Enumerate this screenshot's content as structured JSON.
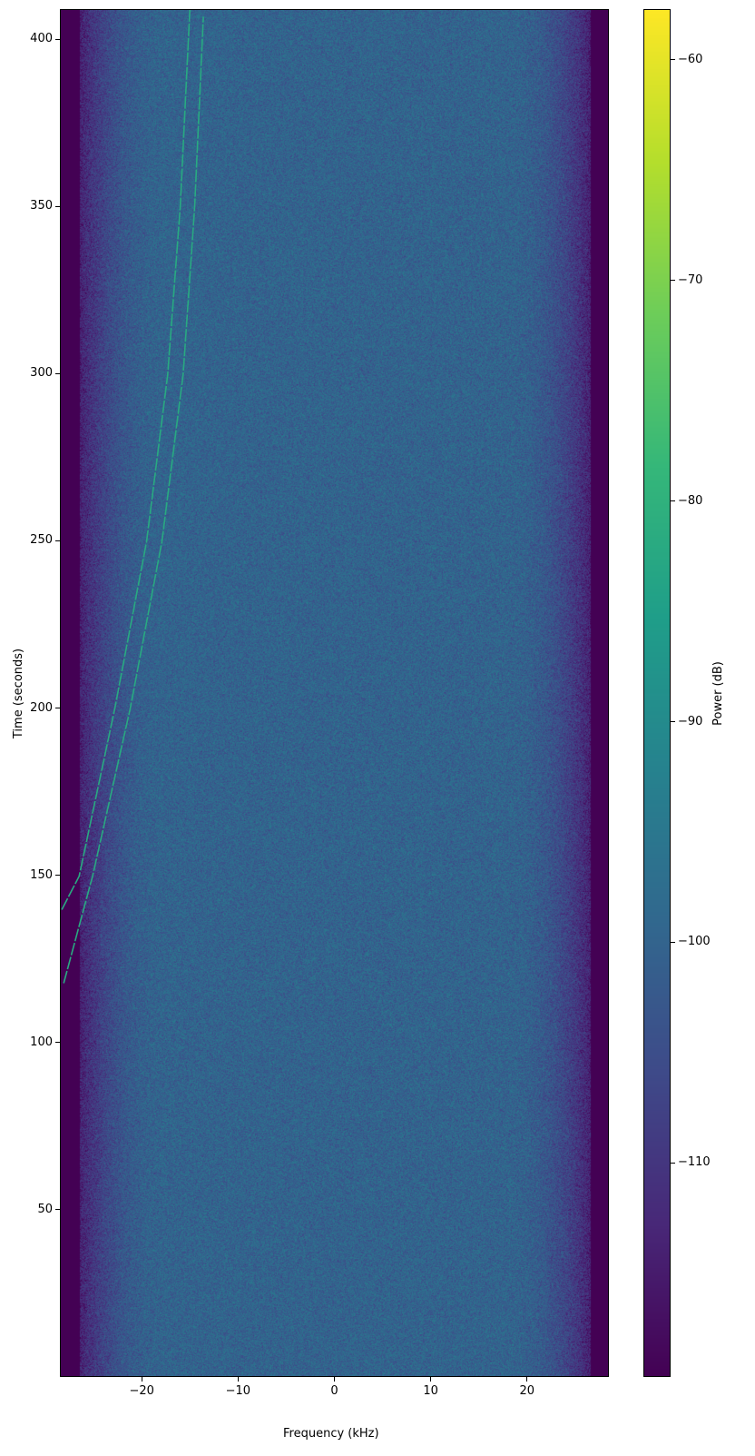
{
  "chart_data": {
    "type": "heatmap",
    "xlabel": "Frequency (kHz)",
    "ylabel": "Time (seconds)",
    "xlim": [
      -28.5,
      28.5
    ],
    "ylim": [
      0,
      409
    ],
    "xticks": [
      -20,
      -10,
      0,
      10,
      20
    ],
    "xtick_labels": [
      "−20",
      "−10",
      "0",
      "10",
      "20"
    ],
    "yticks": [
      50,
      100,
      150,
      200,
      250,
      300,
      350,
      400
    ],
    "ytick_labels": [
      "50",
      "100",
      "150",
      "200",
      "250",
      "300",
      "350",
      "400"
    ],
    "colormap": "viridis",
    "colorbar": {
      "label": "Power (dB)",
      "clim": [
        -119.7,
        -57.7
      ],
      "ticks": [
        -60,
        -70,
        -80,
        -90,
        -100,
        -110
      ],
      "tick_labels": [
        "−60",
        "−70",
        "−80",
        "−90",
        "−100",
        "−110"
      ]
    },
    "noise_floor_db": -100,
    "band_edge_khz": 26.5,
    "signals": [
      {
        "power_db": -82,
        "points": [
          [
            -28.4,
            140
          ],
          [
            -26.6,
            150
          ],
          [
            -22.9,
            200
          ],
          [
            -19.6,
            250
          ],
          [
            -17.4,
            300
          ],
          [
            -16.1,
            350
          ],
          [
            -15.1,
            409
          ]
        ]
      },
      {
        "power_db": -82,
        "points": [
          [
            -28.2,
            118
          ],
          [
            -25.2,
            150
          ],
          [
            -21.3,
            200
          ],
          [
            -18.0,
            250
          ],
          [
            -15.8,
            300
          ],
          [
            -14.6,
            350
          ],
          [
            -13.7,
            407
          ]
        ]
      }
    ]
  }
}
